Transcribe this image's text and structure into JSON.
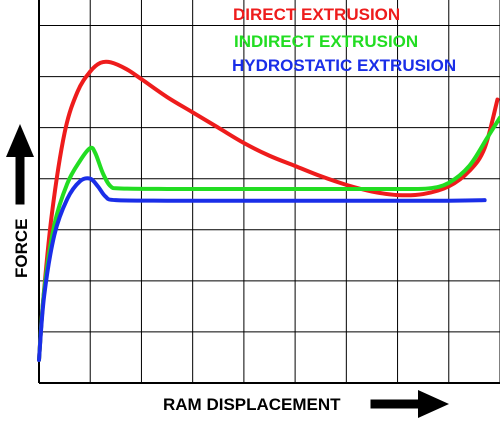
{
  "chart_data": {
    "type": "line",
    "title": "",
    "xlabel": "RAM DISPLACEMENT",
    "ylabel": "FORCE",
    "xlim": [
      0,
      9
    ],
    "ylim": [
      0,
      7.5
    ],
    "grid": true,
    "legend_placement": "top-right",
    "series": [
      {
        "name": "DIRECT EXTRUSION",
        "color": "#ee1c1c",
        "points": [
          [
            0,
            0.45
          ],
          [
            0.08,
            1.6
          ],
          [
            0.25,
            3.3
          ],
          [
            0.5,
            4.9
          ],
          [
            0.75,
            5.7
          ],
          [
            1.0,
            6.1
          ],
          [
            1.2,
            6.27
          ],
          [
            1.4,
            6.28
          ],
          [
            1.7,
            6.15
          ],
          [
            2.0,
            5.95
          ],
          [
            2.5,
            5.6
          ],
          [
            3.0,
            5.3
          ],
          [
            3.5,
            5.0
          ],
          [
            4.0,
            4.7
          ],
          [
            4.5,
            4.45
          ],
          [
            5.0,
            4.25
          ],
          [
            5.5,
            4.05
          ],
          [
            6.0,
            3.88
          ],
          [
            6.5,
            3.75
          ],
          [
            7.0,
            3.68
          ],
          [
            7.5,
            3.7
          ],
          [
            8.0,
            3.85
          ],
          [
            8.4,
            4.15
          ],
          [
            8.7,
            4.6
          ],
          [
            8.95,
            5.55
          ]
        ]
      },
      {
        "name": "INDIRECT EXTRUSION",
        "color": "#22dd22",
        "points": [
          [
            0,
            0.45
          ],
          [
            0.1,
            1.8
          ],
          [
            0.3,
            3.1
          ],
          [
            0.55,
            3.9
          ],
          [
            0.8,
            4.35
          ],
          [
            1.0,
            4.6
          ],
          [
            1.1,
            4.5
          ],
          [
            1.25,
            4.1
          ],
          [
            1.4,
            3.85
          ],
          [
            1.6,
            3.81
          ],
          [
            2.5,
            3.8
          ],
          [
            4.0,
            3.8
          ],
          [
            5.0,
            3.8
          ],
          [
            6.0,
            3.8
          ],
          [
            7.0,
            3.8
          ],
          [
            7.6,
            3.81
          ],
          [
            8.0,
            3.92
          ],
          [
            8.4,
            4.25
          ],
          [
            8.75,
            4.8
          ],
          [
            9.0,
            5.2
          ]
        ]
      },
      {
        "name": "HYDROSTATIC EXTRUSION",
        "color": "#1a2ee8",
        "points": [
          [
            0,
            0.45
          ],
          [
            0.1,
            1.7
          ],
          [
            0.3,
            2.9
          ],
          [
            0.55,
            3.6
          ],
          [
            0.8,
            3.95
          ],
          [
            1.0,
            4.0
          ],
          [
            1.15,
            3.85
          ],
          [
            1.3,
            3.65
          ],
          [
            1.5,
            3.58
          ],
          [
            2.5,
            3.57
          ],
          [
            4.0,
            3.57
          ],
          [
            6.0,
            3.57
          ],
          [
            8.0,
            3.57
          ],
          [
            8.7,
            3.58
          ]
        ]
      }
    ]
  }
}
